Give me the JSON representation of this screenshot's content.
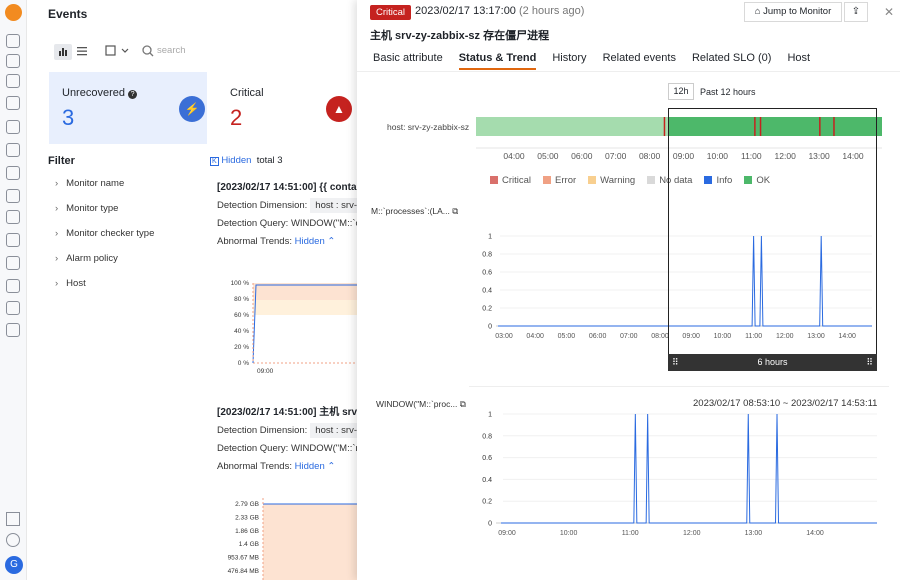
{
  "nav": {
    "avatar_letter": "G"
  },
  "events": {
    "title": "Events",
    "search_placeholder": "search",
    "cards": [
      {
        "label": "Unrecovered",
        "value": "3"
      },
      {
        "label": "Critical",
        "value": "2"
      }
    ],
    "filter_title": "Filter",
    "filters": [
      "Monitor name",
      "Monitor type",
      "Monitor checker type",
      "Alarm policy",
      "Host"
    ],
    "hidden_label": "Hidden",
    "total": "total 3",
    "alarms": [
      {
        "header": "[2023/02/17 14:51:00] {{ conta",
        "dim_label": "Detection Dimension:",
        "dim_value": "host : srv-zy",
        "query_label": "Detection Query:",
        "query_value": "WINDOW(\"M::`cpu",
        "trend_label": "Abnormal Trends:",
        "trend_value": "Hidden"
      },
      {
        "header": "[2023/02/17 14:51:00] 主机 srv",
        "dim_label": "Detection Dimension:",
        "dim_value": "host : srv-zy",
        "query_label": "Detection Query:",
        "query_value": "WINDOW(\"M::`me",
        "trend_label": "Abnormal Trends:",
        "trend_value": "Hidden"
      }
    ],
    "mini1_ticks": [
      "100 %",
      "80 %",
      "60 %",
      "40 %",
      "20 %",
      "0 %"
    ],
    "mini1_x": "09:00",
    "mini2_ticks": [
      "2.79 GB",
      "2.33 GB",
      "1.86 GB",
      "1.4 GB",
      "953.67 MB",
      "476.84 MB"
    ]
  },
  "drawer": {
    "severity": "Critical",
    "timestamp": "2023/02/17 13:17:00",
    "relative": "(2 hours ago)",
    "jump_label": "Jump to Monitor",
    "title": "主机 srv-zy-zabbix-sz 存在僵尸进程",
    "tabs": [
      "Basic attribute",
      "Status & Trend",
      "History",
      "Related events",
      "Related SLO (0)",
      "Host"
    ],
    "active_tab": "Status & Trend",
    "range_button": "12h",
    "range_text": "Past 12 hours",
    "host_label": "host: srv-zy-zabbix-sz",
    "legend": [
      {
        "label": "Critical",
        "color": "#d9706b"
      },
      {
        "label": "Error",
        "color": "#f0a184"
      },
      {
        "label": "Warning",
        "color": "#f8cf8f"
      },
      {
        "label": "No data",
        "color": "#d9d9d9"
      },
      {
        "label": "Info",
        "color": "#2a6ae0"
      },
      {
        "label": "OK",
        "color": "#4db86a"
      }
    ],
    "chart1_title": "M::`processes`:(LA...",
    "chart2_title": "WINDOW(\"M::`proc...",
    "range_label": "2023/02/17 08:53:10 ~ 2023/02/17 14:53:11",
    "selection_label": "6 hours"
  },
  "chart_data": [
    {
      "type": "status-timeline",
      "x_ticks": [
        "04:00",
        "05:00",
        "06:00",
        "07:00",
        "08:00",
        "09:00",
        "10:00",
        "11:00",
        "12:00",
        "13:00",
        "14:00"
      ],
      "critical_markers": [
        "08:25",
        "11:05",
        "11:15",
        "13:00",
        "13:25"
      ]
    },
    {
      "type": "line",
      "title": "M::`processes`:(LA...",
      "x_ticks": [
        "03:00",
        "04:00",
        "05:00",
        "06:00",
        "07:00",
        "08:00",
        "09:00",
        "10:00",
        "11:00",
        "12:00",
        "13:00",
        "14:00"
      ],
      "y_ticks": [
        "0",
        "0.2",
        "0.4",
        "0.6",
        "0.8",
        "1"
      ],
      "ylim": [
        0,
        1
      ],
      "spikes": [
        {
          "x": "11:00",
          "y": 1
        },
        {
          "x": "11:15",
          "y": 1
        },
        {
          "x": "13:10",
          "y": 1
        }
      ]
    },
    {
      "type": "line",
      "title": "WINDOW(\"M::`proc...",
      "x_ticks": [
        "09:00",
        "10:00",
        "11:00",
        "12:00",
        "13:00",
        "14:00"
      ],
      "y_ticks": [
        "0",
        "0.2",
        "0.4",
        "0.6",
        "0.8",
        "1"
      ],
      "ylim": [
        0,
        1
      ],
      "spikes": [
        {
          "x": "11:05",
          "y": 1
        },
        {
          "x": "11:17",
          "y": 1
        },
        {
          "x": "12:55",
          "y": 1
        },
        {
          "x": "13:23",
          "y": 1
        }
      ]
    }
  ]
}
